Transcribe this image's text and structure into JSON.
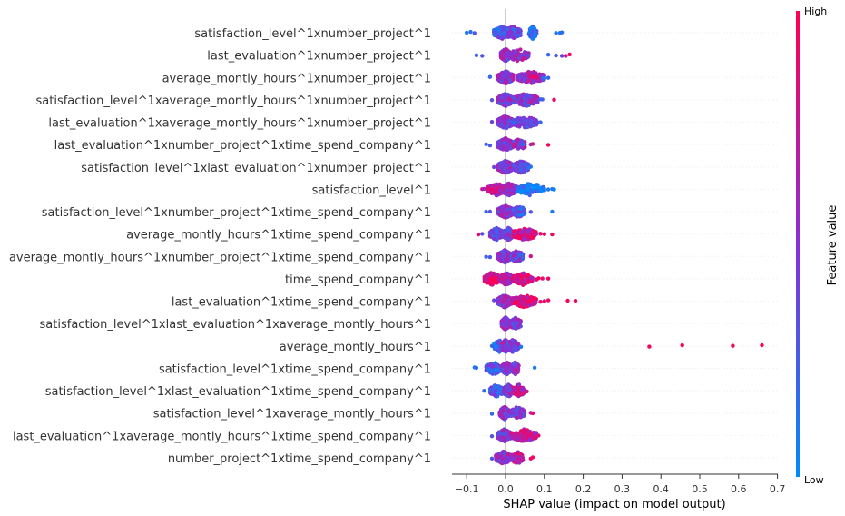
{
  "chart_data": {
    "type": "scatter",
    "subtype": "shap-beeswarm-summary",
    "title": "",
    "xlabel": "SHAP value (impact on model output)",
    "xlim": [
      -0.135,
      0.695
    ],
    "xticks": [
      -0.1,
      0.0,
      0.1,
      0.2,
      0.3,
      0.4,
      0.5,
      0.6,
      0.7
    ],
    "xtick_labels": [
      "−0.1",
      "0.0",
      "0.1",
      "0.2",
      "0.3",
      "0.4",
      "0.5",
      "0.6",
      "0.7"
    ],
    "zero_line": true,
    "colorbar": {
      "title": "Feature value",
      "high_label": "High",
      "low_label": "Low",
      "low_color": "#008bfb",
      "high_color": "#ff0052",
      "placement": "right"
    },
    "features": [
      {
        "name": "satisfaction_level^1xnumber_project^1",
        "clusters": [
          [
            -0.03,
            0.015,
            0.3,
            300
          ],
          [
            -0.005,
            0.04,
            0.4,
            120
          ],
          [
            0.06,
            0.08,
            0.15,
            60
          ]
        ],
        "outliers": [
          [
            -0.1,
            0.1
          ],
          [
            -0.09,
            0.15
          ],
          [
            -0.08,
            0.3
          ],
          [
            0.13,
            0.1
          ],
          [
            0.14,
            0.12
          ],
          [
            0.145,
            0.15
          ]
        ]
      },
      {
        "name": "last_evaluation^1xnumber_project^1",
        "clusters": [
          [
            -0.012,
            0.012,
            0.5,
            300
          ],
          [
            0.005,
            0.06,
            0.55,
            80
          ]
        ],
        "outliers": [
          [
            -0.075,
            0.2
          ],
          [
            -0.06,
            0.3
          ],
          [
            0.11,
            0.2
          ],
          [
            0.13,
            0.25
          ],
          [
            0.145,
            0.4
          ],
          [
            0.155,
            0.8
          ],
          [
            0.165,
            0.95
          ]
        ]
      },
      {
        "name": "average_montly_hours^1xnumber_project^1",
        "clusters": [
          [
            -0.02,
            0.02,
            0.5,
            300
          ],
          [
            0.03,
            0.1,
            0.6,
            120
          ]
        ],
        "outliers": [
          [
            -0.04,
            0.2
          ],
          [
            0.07,
            0.9
          ],
          [
            0.08,
            0.9
          ],
          [
            0.095,
            0.2
          ],
          [
            0.1,
            0.15
          ],
          [
            0.11,
            0.2
          ]
        ]
      },
      {
        "name": "satisfaction_level^1xaverage_montly_hours^1xnumber_project^1",
        "clusters": [
          [
            -0.02,
            0.02,
            0.5,
            300
          ],
          [
            0.02,
            0.085,
            0.5,
            140
          ]
        ],
        "outliers": [
          [
            -0.035,
            0.3
          ],
          [
            0.09,
            0.2
          ],
          [
            0.095,
            0.25
          ],
          [
            0.125,
            0.95
          ]
        ]
      },
      {
        "name": "last_evaluation^1xaverage_montly_hours^1xnumber_project^1",
        "clusters": [
          [
            -0.02,
            0.02,
            0.5,
            300
          ],
          [
            0.02,
            0.08,
            0.4,
            140
          ]
        ],
        "outliers": [
          [
            -0.035,
            0.4
          ],
          [
            0.085,
            0.3
          ],
          [
            0.09,
            0.2
          ]
        ]
      },
      {
        "name": "last_evaluation^1xnumber_project^1xtime_spend_company^1",
        "clusters": [
          [
            -0.02,
            0.02,
            0.5,
            280
          ],
          [
            0.02,
            0.05,
            0.5,
            80
          ]
        ],
        "outliers": [
          [
            -0.05,
            0.2
          ],
          [
            -0.04,
            0.3
          ],
          [
            0.045,
            0.2
          ],
          [
            0.065,
            0.6
          ],
          [
            0.07,
            0.8
          ],
          [
            0.11,
            0.95
          ]
        ]
      },
      {
        "name": "satisfaction_level^1xlast_evaluation^1xnumber_project^1",
        "clusters": [
          [
            -0.02,
            0.02,
            0.5,
            280
          ],
          [
            0.02,
            0.06,
            0.4,
            130
          ]
        ],
        "outliers": [
          [
            -0.03,
            0.4
          ],
          [
            0.06,
            0.1
          ],
          [
            0.065,
            0.15
          ]
        ]
      },
      {
        "name": "satisfaction_level^1",
        "clusters": [
          [
            -0.045,
            0.0,
            0.7,
            150
          ],
          [
            -0.01,
            0.03,
            0.5,
            200
          ],
          [
            0.03,
            0.1,
            0.1,
            80
          ]
        ],
        "outliers": [
          [
            -0.06,
            0.8
          ],
          [
            -0.055,
            0.6
          ],
          [
            0.1,
            0.1
          ],
          [
            0.11,
            0.1
          ],
          [
            0.12,
            0.08
          ],
          [
            0.125,
            0.05
          ]
        ]
      },
      {
        "name": "satisfaction_level^1xnumber_project^1xtime_spend_company^1",
        "clusters": [
          [
            -0.02,
            0.02,
            0.5,
            280
          ],
          [
            0.02,
            0.05,
            0.3,
            100
          ]
        ],
        "outliers": [
          [
            -0.05,
            0.2
          ],
          [
            -0.04,
            0.3
          ],
          [
            0.065,
            0.3
          ],
          [
            0.12,
            0.1
          ]
        ]
      },
      {
        "name": "average_montly_hours^1xtime_spend_company^1",
        "clusters": [
          [
            -0.04,
            -0.005,
            0.4,
            150
          ],
          [
            -0.005,
            0.02,
            0.5,
            200
          ],
          [
            0.02,
            0.08,
            0.8,
            120
          ]
        ],
        "outliers": [
          [
            -0.07,
            0.9
          ],
          [
            -0.06,
            0.3
          ],
          [
            0.09,
            0.9
          ],
          [
            0.1,
            0.95
          ],
          [
            0.12,
            0.95
          ]
        ]
      },
      {
        "name": "average_montly_hours^1xnumber_project^1xtime_spend_company^1",
        "clusters": [
          [
            -0.02,
            0.015,
            0.5,
            280
          ],
          [
            0.015,
            0.045,
            0.4,
            100
          ]
        ],
        "outliers": [
          [
            -0.05,
            0.2
          ],
          [
            -0.04,
            0.3
          ],
          [
            0.065,
            0.8
          ]
        ]
      },
      {
        "name": "time_spend_company^1",
        "clusters": [
          [
            -0.055,
            -0.015,
            0.9,
            180
          ],
          [
            -0.015,
            0.02,
            0.6,
            200
          ],
          [
            0.02,
            0.07,
            0.8,
            100
          ]
        ],
        "outliers": [
          [
            0.08,
            0.9
          ],
          [
            0.085,
            0.95
          ],
          [
            0.095,
            0.9
          ],
          [
            0.11,
            0.95
          ]
        ]
      },
      {
        "name": "last_evaluation^1xtime_spend_company^1",
        "clusters": [
          [
            -0.02,
            0.015,
            0.5,
            250
          ],
          [
            0.015,
            0.08,
            0.85,
            150
          ]
        ],
        "outliers": [
          [
            -0.03,
            0.4
          ],
          [
            0.09,
            0.9
          ],
          [
            0.1,
            0.9
          ],
          [
            0.11,
            0.95
          ],
          [
            0.16,
            0.95
          ],
          [
            0.18,
            0.95
          ]
        ]
      },
      {
        "name": "satisfaction_level^1xlast_evaluation^1xaverage_montly_hours^1",
        "clusters": [
          [
            -0.01,
            0.01,
            0.6,
            250
          ],
          [
            0.01,
            0.04,
            0.5,
            80
          ]
        ]
      },
      {
        "name": "average_montly_hours^1",
        "clusters": [
          [
            -0.03,
            0.0,
            0.2,
            60
          ],
          [
            -0.01,
            0.01,
            0.5,
            200
          ],
          [
            0.0,
            0.035,
            0.4,
            80
          ]
        ],
        "outliers": [
          [
            -0.035,
            0.2
          ],
          [
            0.04,
            0.1
          ],
          [
            0.37,
            0.95
          ],
          [
            0.455,
            0.95
          ],
          [
            0.585,
            0.95
          ],
          [
            0.66,
            0.95
          ]
        ]
      },
      {
        "name": "satisfaction_level^1xtime_spend_company^1",
        "clusters": [
          [
            -0.05,
            -0.01,
            0.3,
            100
          ],
          [
            -0.01,
            0.015,
            0.5,
            220
          ],
          [
            0.015,
            0.035,
            0.5,
            60
          ]
        ],
        "outliers": [
          [
            -0.08,
            0.1
          ],
          [
            -0.075,
            0.15
          ],
          [
            0.075,
            0.1
          ]
        ]
      },
      {
        "name": "satisfaction_level^1xlast_evaluation^1xtime_spend_company^1",
        "clusters": [
          [
            -0.04,
            -0.005,
            0.3,
            100
          ],
          [
            -0.005,
            0.02,
            0.5,
            220
          ],
          [
            0.02,
            0.05,
            0.7,
            60
          ]
        ],
        "outliers": [
          [
            -0.055,
            0.2
          ],
          [
            0.055,
            0.8
          ]
        ]
      },
      {
        "name": "satisfaction_level^1xaverage_montly_hours^1",
        "clusters": [
          [
            -0.015,
            0.01,
            0.5,
            220
          ],
          [
            0.01,
            0.05,
            0.5,
            80
          ]
        ],
        "outliers": [
          [
            -0.035,
            0.2
          ],
          [
            0.065,
            0.7
          ],
          [
            0.07,
            0.9
          ]
        ]
      },
      {
        "name": "last_evaluation^1xaverage_montly_hours^1xtime_spend_company^1",
        "clusters": [
          [
            -0.02,
            0.015,
            0.5,
            220
          ],
          [
            0.015,
            0.08,
            0.75,
            120
          ]
        ],
        "outliers": [
          [
            -0.035,
            0.3
          ],
          [
            0.085,
            0.9
          ]
        ]
      },
      {
        "name": "number_project^1xtime_spend_company^1",
        "clusters": [
          [
            -0.025,
            0.015,
            0.5,
            220
          ],
          [
            0.015,
            0.045,
            0.7,
            80
          ]
        ],
        "outliers": [
          [
            -0.035,
            0.3
          ],
          [
            0.065,
            0.9
          ],
          [
            0.07,
            0.95
          ]
        ]
      }
    ]
  }
}
